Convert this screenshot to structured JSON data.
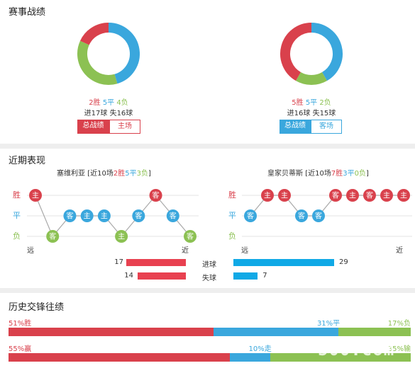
{
  "colors": {
    "win": "#d9414c",
    "draw": "#3aa7dd",
    "loss": "#8cc153",
    "bar_blue": "#10a9e6"
  },
  "record": {
    "title": "赛事战绩",
    "left": {
      "wins": 2,
      "draws": 5,
      "losses": 4,
      "win_text": "2胜",
      "draw_text": "5平",
      "loss_text": "4负",
      "goals_text": "进17球 失16球",
      "tab_active": "总战绩",
      "tab_inactive": "主场"
    },
    "right": {
      "wins": 5,
      "draws": 5,
      "losses": 2,
      "win_text": "5胜",
      "draw_text": "5平",
      "loss_text": "2负",
      "goals_text": "进16球 失15球",
      "tab_active": "总战绩",
      "tab_inactive": "客场"
    }
  },
  "recent": {
    "title": "近期表现",
    "y_labels": {
      "win": "胜",
      "draw": "平",
      "loss": "负"
    },
    "axis": {
      "far": "远",
      "near": "近"
    },
    "left": {
      "team": "塞维利亚",
      "summary_prefix": "[近10场",
      "wins_text": "2胜",
      "draws_text": "5平",
      "losses_text": "3负",
      "summary_suffix": "]",
      "results": [
        {
          "r": "W",
          "venue": "主"
        },
        {
          "r": "L",
          "venue": "客"
        },
        {
          "r": "D",
          "venue": "客"
        },
        {
          "r": "D",
          "venue": "主"
        },
        {
          "r": "D",
          "venue": "主"
        },
        {
          "r": "L",
          "venue": "主"
        },
        {
          "r": "D",
          "venue": "客"
        },
        {
          "r": "W",
          "venue": "客"
        },
        {
          "r": "D",
          "venue": "客"
        },
        {
          "r": "L",
          "venue": "客"
        }
      ]
    },
    "right": {
      "team": "皇家贝蒂斯",
      "summary_prefix": "[近10场",
      "wins_text": "7胜",
      "draws_text": "3平",
      "losses_text": "0负",
      "summary_suffix": "]",
      "results": [
        {
          "r": "D",
          "venue": "客"
        },
        {
          "r": "W",
          "venue": "主"
        },
        {
          "r": "W",
          "venue": "主"
        },
        {
          "r": "D",
          "venue": "客"
        },
        {
          "r": "D",
          "venue": "客"
        },
        {
          "r": "W",
          "venue": "客"
        },
        {
          "r": "W",
          "venue": "主"
        },
        {
          "r": "W",
          "venue": "客"
        },
        {
          "r": "W",
          "venue": "主"
        },
        {
          "r": "W",
          "venue": "主"
        }
      ]
    },
    "goals": {
      "scored_label": "进球",
      "conceded_label": "失球",
      "left_scored": 17,
      "left_conceded": 14,
      "right_scored": 29,
      "right_conceded": 7
    }
  },
  "history": {
    "title": "历史交锋往绩",
    "row1": {
      "win_pct": 51,
      "draw_pct": 31,
      "loss_pct": 17,
      "win_text": "51%胜",
      "draw_text": "31%平",
      "loss_text": "17%负"
    },
    "row2": {
      "win_pct": 55,
      "draw_pct": 10,
      "loss_pct": 35,
      "win_text": "55%赢",
      "draw_text": "10%走",
      "loss_text": "35%输"
    },
    "watermark": "500.com"
  }
}
